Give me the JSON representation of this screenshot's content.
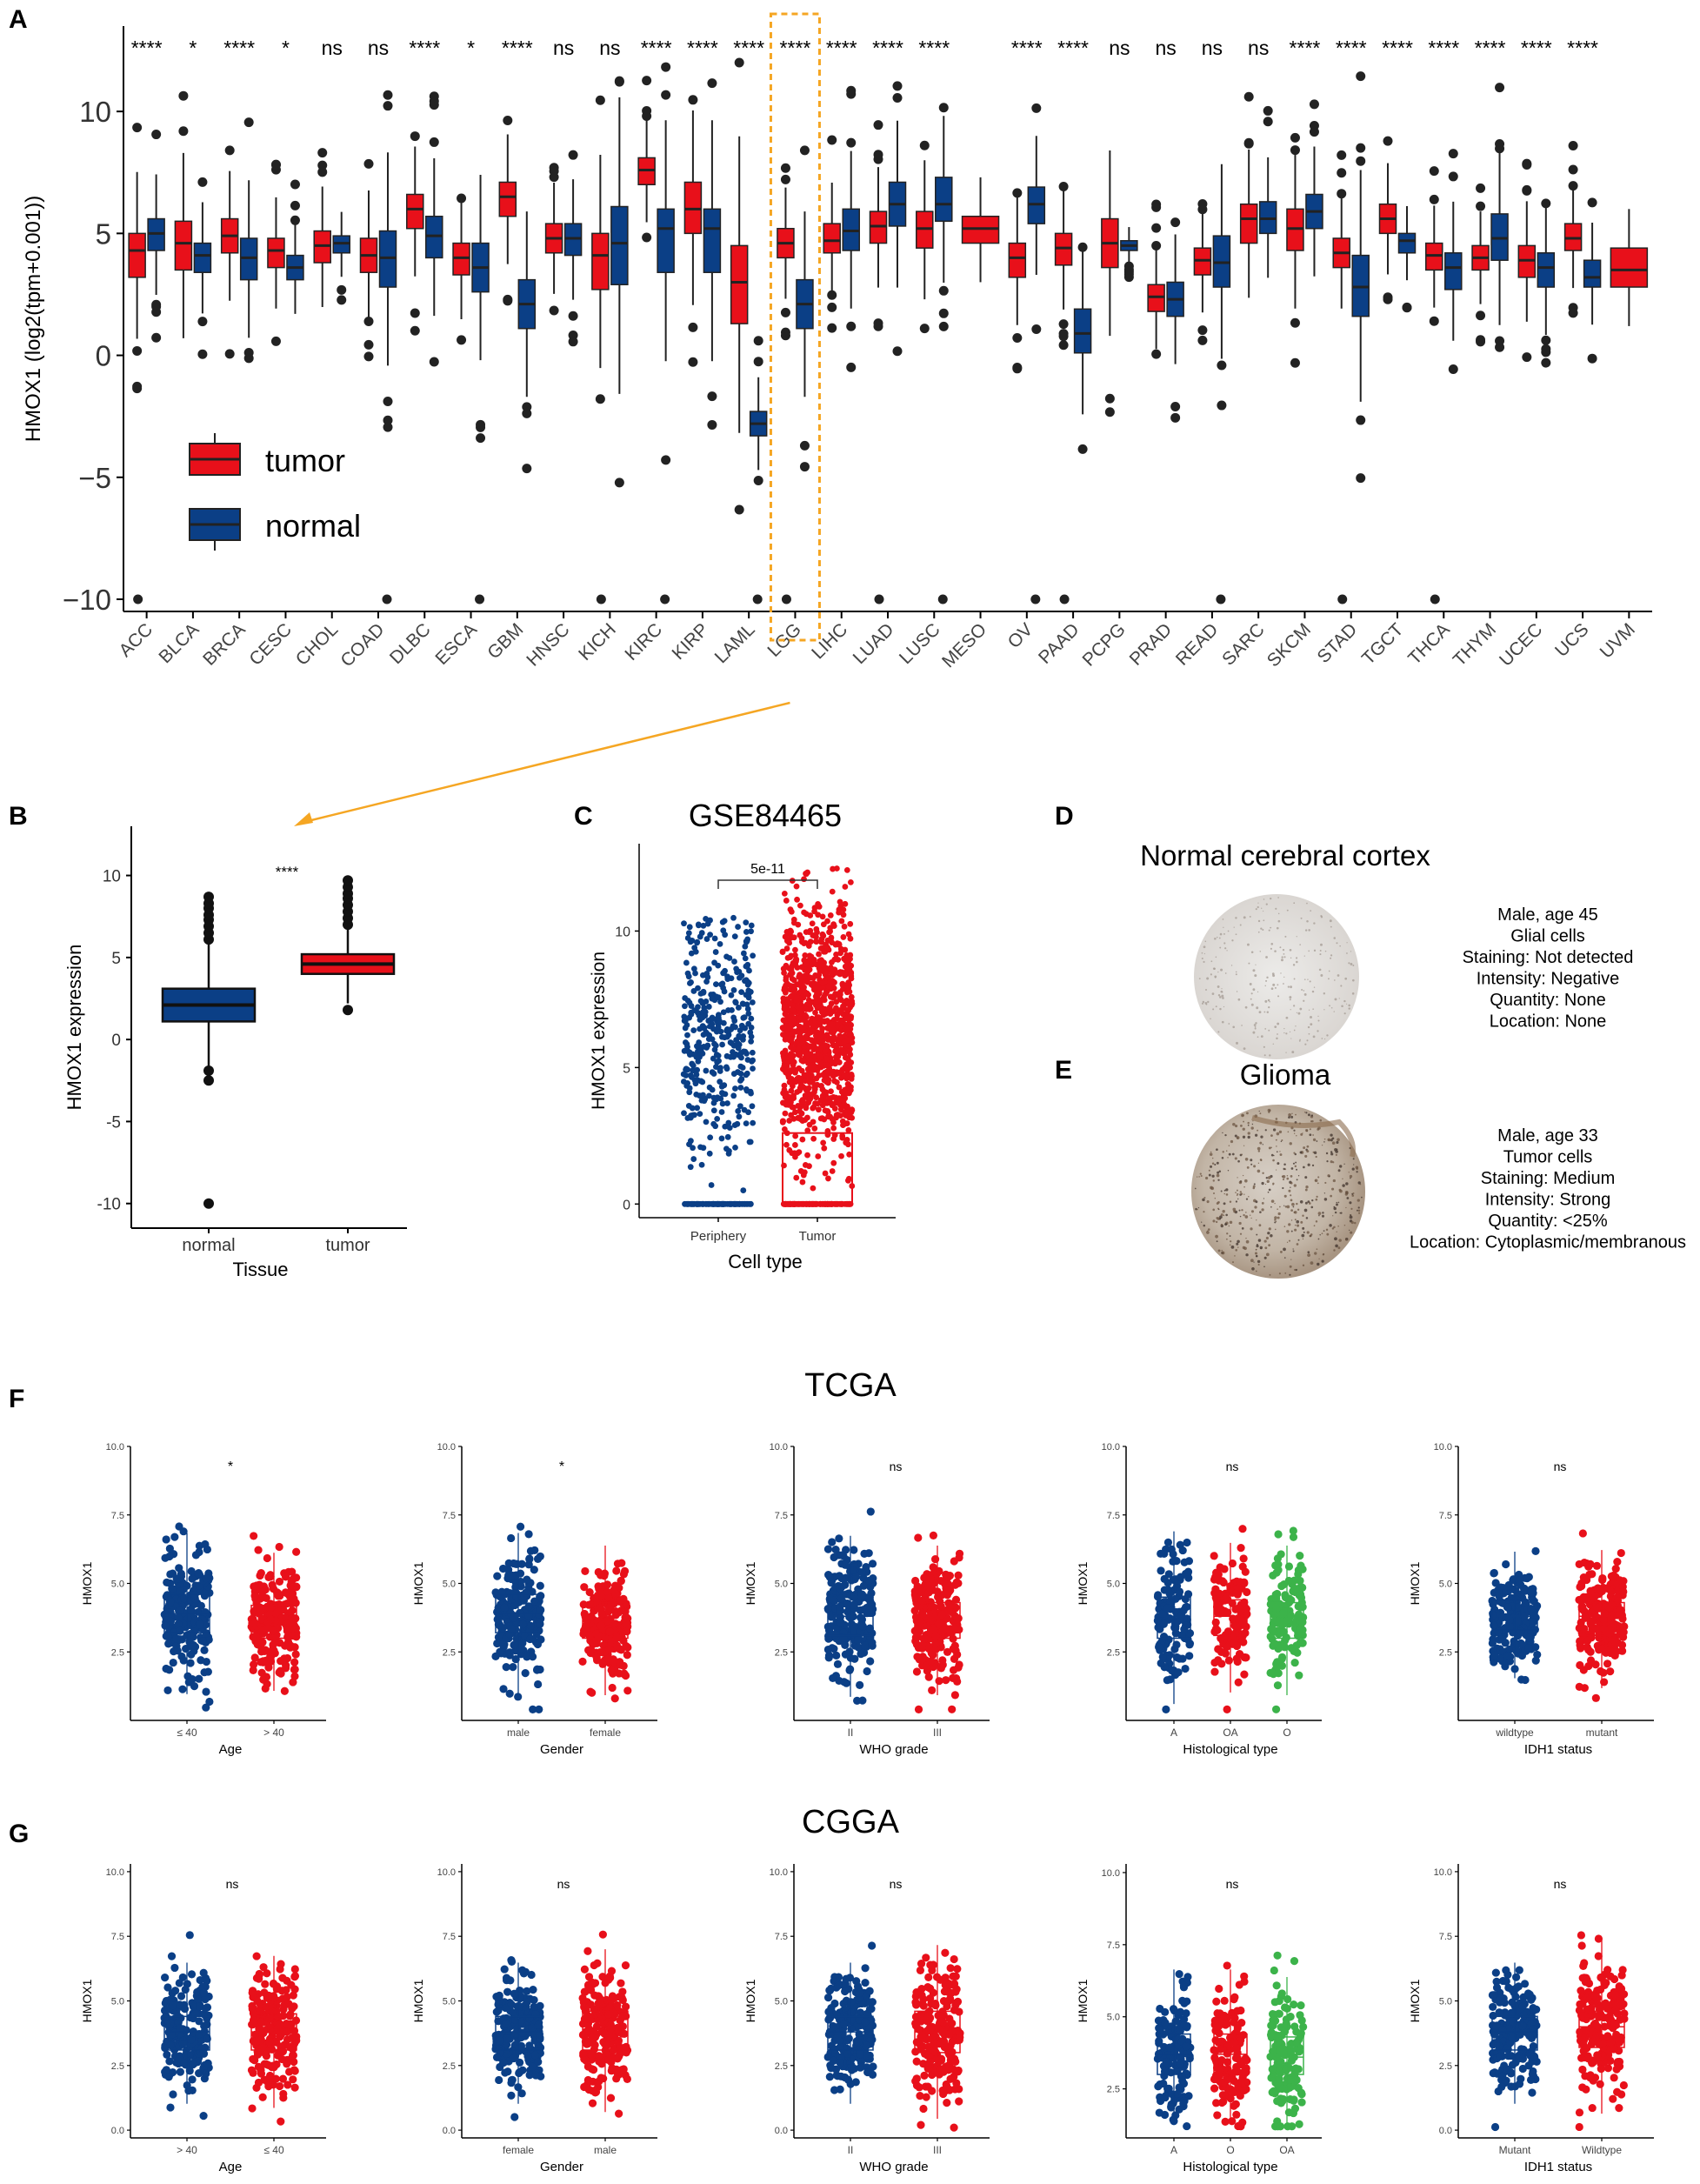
{
  "panels": {
    "A": "A",
    "B": "B",
    "C": "C",
    "D": "D",
    "E": "E",
    "F": "F",
    "G": "G"
  },
  "colors": {
    "tumor": "#e8101a",
    "normal": "#0b3f86",
    "green": "#3cb34a",
    "highlight": "#f5a623",
    "point": "#222222"
  },
  "chart_data": [
    {
      "id": "A",
      "type": "box",
      "ylabel": "HMOX1 (log2(tpm+0.001))",
      "ylim": [
        -10.5,
        13.5
      ],
      "yticks": [
        -10,
        -5,
        0,
        5,
        10
      ],
      "ytick_labels": [
        "−10",
        "−5",
        "0",
        "5",
        "10"
      ],
      "legend": [
        "tumor",
        "normal"
      ],
      "highlight": "LGG",
      "categories": [
        "ACC",
        "BLCA",
        "BRCA",
        "CESC",
        "CHOL",
        "COAD",
        "DLBC",
        "ESCA",
        "GBM",
        "HNSC",
        "KICH",
        "KIRC",
        "KIRP",
        "LAML",
        "LGG",
        "LIHC",
        "LUAD",
        "LUSC",
        "MESO",
        "OV",
        "PAAD",
        "PCPG",
        "PRAD",
        "READ",
        "SARC",
        "SKCM",
        "STAD",
        "TGCT",
        "THCA",
        "THYM",
        "UCEC",
        "UCS",
        "UVM"
      ],
      "significance": [
        "****",
        "*",
        "****",
        "*",
        "ns",
        "ns",
        "****",
        "*",
        "****",
        "ns",
        "ns",
        "****",
        "****",
        "****",
        "****",
        "****",
        "****",
        "****",
        "",
        "****",
        "****",
        "ns",
        "ns",
        "ns",
        "ns",
        "****",
        "****",
        "****",
        "****",
        "****",
        "****",
        "****",
        ""
      ],
      "tumor": [
        [
          3.2,
          4.3,
          5.0
        ],
        [
          3.5,
          4.6,
          5.5
        ],
        [
          4.2,
          4.9,
          5.6
        ],
        [
          3.6,
          4.3,
          4.8
        ],
        [
          3.8,
          4.5,
          5.1
        ],
        [
          3.4,
          4.1,
          4.8
        ],
        [
          5.2,
          6.0,
          6.6
        ],
        [
          3.3,
          4.0,
          4.6
        ],
        [
          5.7,
          6.5,
          7.1
        ],
        [
          4.2,
          4.8,
          5.4
        ],
        [
          2.7,
          4.1,
          5.0
        ],
        [
          7.0,
          7.6,
          8.1
        ],
        [
          5.0,
          6.0,
          7.1
        ],
        [
          1.3,
          3.0,
          4.5
        ],
        [
          4.0,
          4.6,
          5.2
        ],
        [
          4.2,
          4.7,
          5.4
        ],
        [
          4.6,
          5.3,
          5.9
        ],
        [
          4.4,
          5.2,
          5.9
        ],
        [
          4.6,
          5.2,
          5.7
        ],
        [
          3.2,
          4.0,
          4.6
        ],
        [
          3.7,
          4.4,
          5.0
        ],
        [
          3.6,
          4.6,
          5.6
        ],
        [
          1.8,
          2.4,
          2.9
        ],
        [
          3.3,
          3.9,
          4.4
        ],
        [
          4.6,
          5.6,
          6.2
        ],
        [
          4.3,
          5.2,
          6.0
        ],
        [
          3.6,
          4.2,
          4.8
        ],
        [
          5.0,
          5.6,
          6.2
        ],
        [
          3.5,
          4.1,
          4.6
        ],
        [
          3.5,
          4.0,
          4.5
        ],
        [
          3.2,
          3.9,
          4.5
        ],
        [
          4.3,
          4.8,
          5.4
        ],
        [
          2.8,
          3.5,
          4.4
        ]
      ],
      "normal": [
        [
          4.3,
          5.0,
          5.6
        ],
        [
          3.4,
          4.1,
          4.6
        ],
        [
          3.1,
          4.0,
          4.8
        ],
        [
          3.1,
          3.6,
          4.1
        ],
        [
          4.2,
          4.6,
          4.9
        ],
        [
          2.8,
          4.0,
          5.1
        ],
        [
          4.0,
          4.9,
          5.7
        ],
        [
          2.6,
          3.6,
          4.6
        ],
        [
          1.1,
          2.1,
          3.1
        ],
        [
          4.1,
          4.8,
          5.4
        ],
        [
          2.9,
          4.6,
          6.1
        ],
        [
          3.4,
          5.2,
          6.0
        ],
        [
          3.4,
          5.2,
          6.0
        ],
        [
          -3.3,
          -2.8,
          -2.3
        ],
        [
          1.1,
          2.1,
          3.1
        ],
        [
          4.3,
          5.1,
          6.0
        ],
        [
          5.3,
          6.2,
          7.1
        ],
        [
          5.5,
          6.2,
          7.3
        ],
        null,
        [
          5.4,
          6.2,
          6.9
        ],
        [
          0.1,
          0.9,
          1.9
        ],
        [
          4.3,
          4.5,
          4.7
        ],
        [
          1.6,
          2.3,
          3.0
        ],
        [
          2.8,
          3.8,
          4.9
        ],
        [
          5.0,
          5.6,
          6.3
        ],
        [
          5.2,
          5.9,
          6.6
        ],
        [
          1.6,
          2.8,
          4.1
        ],
        [
          4.2,
          4.7,
          5.0
        ],
        [
          2.7,
          3.6,
          4.2
        ],
        [
          3.9,
          4.8,
          5.8
        ],
        [
          2.8,
          3.6,
          4.2
        ],
        [
          2.8,
          3.2,
          3.9
        ],
        null
      ]
    },
    {
      "id": "B",
      "type": "box",
      "xlabel": "Tissue",
      "ylabel": "HMOX1 expression",
      "ylim": [
        -11.5,
        13
      ],
      "yticks": [
        -10,
        -5,
        0,
        5,
        10
      ],
      "ytick_labels": [
        "-10",
        "-5",
        "0",
        "5",
        "10"
      ],
      "categories": [
        "normal",
        "tumor"
      ],
      "significance": "****",
      "values": [
        [
          1.1,
          2.1,
          3.1
        ],
        [
          4.0,
          4.6,
          5.2
        ]
      ]
    },
    {
      "id": "C",
      "type": "scatter",
      "title": "GSE84465",
      "xlabel": "Cell type",
      "ylabel": "HMOX1 expression",
      "ylim": [
        -0.5,
        13.2
      ],
      "yticks": [
        0,
        5,
        10
      ],
      "ytick_labels": [
        "0",
        "5",
        "10"
      ],
      "categories": [
        "Periphery",
        "Tumor"
      ],
      "pvalue": "5e-11",
      "box": [
        [
          0,
          0,
          0
        ],
        [
          0,
          0,
          2.6
        ]
      ]
    },
    {
      "id": "F",
      "type": "scatter",
      "title": "TCGA",
      "ylabel": "HMOX1",
      "subplots": [
        {
          "xlabel": "Age",
          "sig": "*",
          "groups": [
            "≤ 40",
            "> 40"
          ],
          "colors": [
            "normal",
            "tumor"
          ],
          "ylim": [
            0,
            10.0
          ],
          "yticks": [
            "2.5",
            "5.0",
            "7.5",
            "10.0"
          ],
          "box": [
            [
              3.2,
              3.9,
              4.6
            ],
            [
              3.0,
              3.6,
              4.2
            ]
          ]
        },
        {
          "xlabel": "Gender",
          "sig": "*",
          "groups": [
            "male",
            "female"
          ],
          "colors": [
            "normal",
            "tumor"
          ],
          "ylim": [
            0,
            10.0
          ],
          "yticks": [
            "2.5",
            "5.0",
            "7.5",
            "10.0"
          ],
          "box": [
            [
              3.2,
              3.9,
              4.6
            ],
            [
              3.0,
              3.6,
              4.3
            ]
          ]
        },
        {
          "xlabel": "WHO grade",
          "sig": "ns",
          "groups": [
            "II",
            "III"
          ],
          "colors": [
            "normal",
            "tumor"
          ],
          "ylim": [
            0,
            10.0
          ],
          "yticks": [
            "2.5",
            "5.0",
            "7.5",
            "10.0"
          ],
          "box": [
            [
              3.1,
              3.8,
              4.5
            ],
            [
              3.0,
              3.7,
              4.3
            ]
          ]
        },
        {
          "xlabel": "Histological type",
          "sig": "ns",
          "groups": [
            "A",
            "OA",
            "O"
          ],
          "colors": [
            "normal",
            "tumor",
            "green"
          ],
          "ylim": [
            0,
            10.0
          ],
          "yticks": [
            "2.5",
            "5.0",
            "7.5",
            "10.0"
          ],
          "box": [
            [
              3.0,
              3.8,
              4.5
            ],
            [
              3.1,
              3.8,
              4.4
            ],
            [
              3.0,
              3.7,
              4.3
            ]
          ]
        },
        {
          "xlabel": "IDH1 status",
          "sig": "ns",
          "groups": [
            "wildtype",
            "mutant"
          ],
          "colors": [
            "normal",
            "tumor"
          ],
          "ylim": [
            0,
            10.0
          ],
          "yticks": [
            "2.5",
            "5.0",
            "7.5",
            "10.0"
          ],
          "box": [
            [
              3.3,
              3.8,
              4.4
            ],
            [
              3.1,
              3.8,
              4.3
            ]
          ]
        }
      ]
    },
    {
      "id": "G",
      "type": "scatter",
      "title": "CGGA",
      "ylabel": "HMOX1",
      "subplots": [
        {
          "xlabel": "Age",
          "sig": "ns",
          "groups": [
            "> 40",
            "≤ 40"
          ],
          "colors": [
            "normal",
            "tumor"
          ],
          "ylim": [
            -0.3,
            10.3
          ],
          "yticks": [
            "0.0",
            "2.5",
            "5.0",
            "7.5",
            "10.0"
          ],
          "box": [
            [
              3.1,
              3.8,
              4.4
            ],
            [
              3.1,
              3.8,
              4.5
            ]
          ]
        },
        {
          "xlabel": "Gender",
          "sig": "ns",
          "groups": [
            "female",
            "male"
          ],
          "colors": [
            "normal",
            "tumor"
          ],
          "ylim": [
            -0.3,
            10.3
          ],
          "yticks": [
            "0.0",
            "2.5",
            "5.0",
            "7.5",
            "10.0"
          ],
          "box": [
            [
              3.1,
              3.8,
              4.4
            ],
            [
              3.1,
              3.8,
              4.6
            ]
          ]
        },
        {
          "xlabel": "WHO grade",
          "sig": "ns",
          "groups": [
            "II",
            "III"
          ],
          "colors": [
            "normal",
            "tumor"
          ],
          "ylim": [
            -0.3,
            10.3
          ],
          "yticks": [
            "0.0",
            "2.5",
            "5.0",
            "7.5",
            "10.0"
          ],
          "box": [
            [
              3.1,
              3.8,
              4.4
            ],
            [
              3.0,
              3.8,
              4.6
            ]
          ]
        },
        {
          "xlabel": "Histological type",
          "sig": "ns",
          "groups": [
            "A",
            "O",
            "OA"
          ],
          "colors": [
            "normal",
            "tumor",
            "green"
          ],
          "ylim": [
            0.8,
            10.3
          ],
          "yticks": [
            "2.5",
            "5.0",
            "7.5",
            "10.0"
          ],
          "box": [
            [
              3.0,
              3.7,
              4.4
            ],
            [
              3.0,
              3.7,
              4.4
            ],
            [
              3.0,
              3.6,
              4.3
            ]
          ]
        },
        {
          "xlabel": "IDH1 status",
          "sig": "ns",
          "groups": [
            "Mutant",
            "Wildtype"
          ],
          "colors": [
            "normal",
            "tumor"
          ],
          "ylim": [
            -0.3,
            10.3
          ],
          "yticks": [
            "0.0",
            "2.5",
            "5.0",
            "7.5",
            "10.0"
          ],
          "box": [
            [
              3.1,
              3.8,
              4.4
            ],
            [
              3.2,
              4.0,
              4.8
            ]
          ]
        }
      ]
    }
  ],
  "ihc": {
    "normal": {
      "title": "Normal cerebral cortex",
      "lines": [
        "Male, age 45",
        "Glial cells",
        "Staining: Not detected",
        "Intensity: Negative",
        "Quantity: None",
        "Location: None"
      ]
    },
    "glioma": {
      "title": "Glioma",
      "lines": [
        "Male, age 33",
        "Tumor cells",
        "Staining: Medium",
        "Intensity: Strong",
        "Quantity: <25%",
        "Location: Cytoplasmic/membranous"
      ]
    }
  }
}
